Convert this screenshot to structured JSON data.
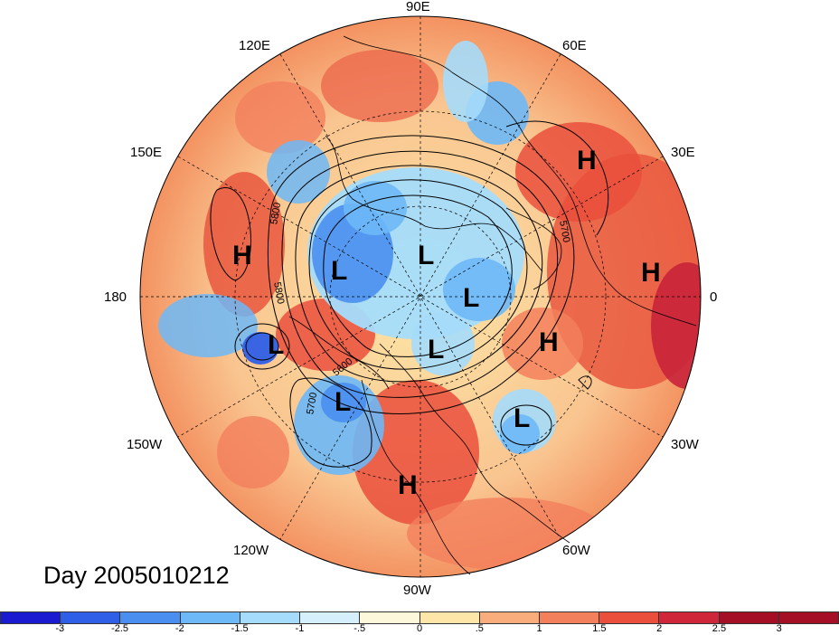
{
  "map": {
    "longitude_labels": [
      {
        "text": "90E",
        "id": "lon-label-90e"
      },
      {
        "text": "60E",
        "id": "lon-label-60e"
      },
      {
        "text": "30E",
        "id": "lon-label-30e"
      },
      {
        "text": "0",
        "id": "lon-label-0"
      },
      {
        "text": "30W",
        "id": "lon-label-30w"
      },
      {
        "text": "60W",
        "id": "lon-label-60w"
      },
      {
        "text": "90W",
        "id": "lon-label-90w"
      },
      {
        "text": "120W",
        "id": "lon-label-120w"
      },
      {
        "text": "150W",
        "id": "lon-label-150w"
      },
      {
        "text": "180",
        "id": "lon-label-180"
      },
      {
        "text": "150E",
        "id": "lon-label-150e"
      },
      {
        "text": "120E",
        "id": "lon-label-120e"
      }
    ],
    "pressure_centers": [
      "H",
      "L",
      "L",
      "L",
      "L",
      "H",
      "H",
      "H",
      "L",
      "L",
      "L",
      "H"
    ],
    "contour_labels": [
      "5800",
      "5800",
      "5700",
      "5700",
      "5600"
    ],
    "colors": {
      "high_shade": "#e8503a",
      "low_shade": "#6aaef0"
    }
  },
  "day_label": "Day 2005010212",
  "colorbar": {
    "colors": [
      "#1a1ad0",
      "#2f5fe6",
      "#4a8ff0",
      "#6db8f7",
      "#a5dcfb",
      "#d5effc",
      "#fdf8dc",
      "#fde6a7",
      "#f9ad7c",
      "#f3805c",
      "#ea4f3c",
      "#d0263a",
      "#a50f25"
    ],
    "ticks": [
      "-3",
      "-2.5",
      "-2",
      "-1.5",
      "-1",
      "-.5",
      "0",
      ".5",
      "1",
      "1.5",
      "2",
      "2.5",
      "3"
    ]
  }
}
